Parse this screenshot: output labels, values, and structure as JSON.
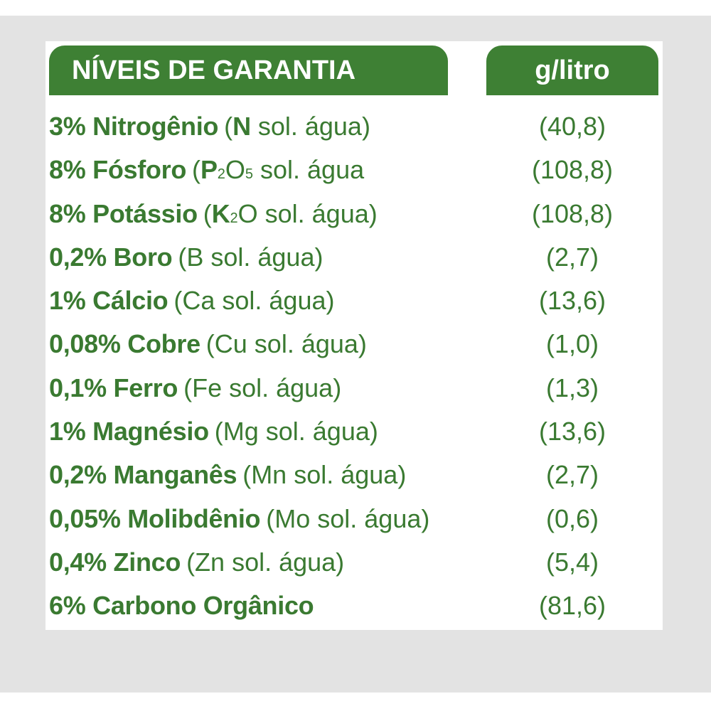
{
  "header": {
    "left_title": "NÍVEIS DE GARANTIA",
    "right_title": "g/litro"
  },
  "rows": [
    {
      "percent_name": "3% Nitrogênio",
      "detail_pre": "(",
      "detail_bold": "N",
      "detail_post": " sol. água)",
      "value": "(40,8)"
    },
    {
      "percent_name": "8% Fósforo",
      "detail_pre": "(",
      "detail_bold": "P",
      "detail_sub1": "2",
      "detail_mid": "O",
      "detail_sub2": "5",
      "detail_post": " sol. água",
      "value": "(108,8)"
    },
    {
      "percent_name": "8% Potássio",
      "detail_pre": "(",
      "detail_bold": "K",
      "detail_sub1": "2",
      "detail_mid": "O",
      "detail_post": " sol. água)",
      "value": "(108,8)"
    },
    {
      "percent_name": "0,2% Boro",
      "detail": "(B sol. água)",
      "value": "(2,7)"
    },
    {
      "percent_name": "1% Cálcio",
      "detail": "(Ca sol. água)",
      "value": "(13,6)"
    },
    {
      "percent_name": "0,08% Cobre",
      "detail": "(Cu sol. água)",
      "value": "(1,0)"
    },
    {
      "percent_name": "0,1% Ferro",
      "detail": "(Fe sol. água)",
      "value": "(1,3)"
    },
    {
      "percent_name": "1% Magnésio",
      "detail": "(Mg sol. água)",
      "value": "(13,6)"
    },
    {
      "percent_name": "0,2% Manganês",
      "detail": "(Mn sol. água)",
      "value": "(2,7)"
    },
    {
      "percent_name": "0,05% Molibdênio",
      "detail": "(Mo sol. água)",
      "value": "(0,6)"
    },
    {
      "percent_name": "0,4% Zinco",
      "detail": "(Zn sol. água)",
      "value": "(5,4)"
    },
    {
      "percent_name": "6% Carbono Orgânico",
      "value": "(81,6)"
    }
  ],
  "colors": {
    "brand_green": "#3e8034",
    "text_green": "#3a7a31",
    "frame_gray": "#e3e3e3"
  }
}
